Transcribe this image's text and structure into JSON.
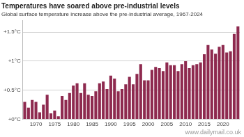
{
  "chart_data": {
    "type": "bar",
    "title": "Temperatures have soared above pre-industrial levels",
    "subtitle": "Global surface temperature increase above the pre-industrial average, 1967-2024",
    "annotation": "www.dailymail.co.uk",
    "categories": [
      null,
      null,
      null,
      "1970",
      null,
      null,
      null,
      null,
      "1975",
      null,
      null,
      null,
      null,
      "1980",
      null,
      null,
      null,
      null,
      "1985",
      null,
      null,
      null,
      null,
      "1990",
      null,
      null,
      null,
      null,
      "1995",
      null,
      null,
      null,
      null,
      "2000",
      null,
      null,
      null,
      null,
      "2005",
      null,
      null,
      null,
      null,
      "2010",
      null,
      null,
      null,
      null,
      "2015",
      null,
      null,
      null,
      null,
      "2020",
      null,
      null,
      null,
      null
    ],
    "values": [
      0.3,
      0.2,
      0.33,
      0.3,
      0.12,
      0.25,
      0.42,
      0.1,
      0.15,
      0.05,
      0.4,
      0.33,
      0.45,
      0.58,
      0.62,
      0.45,
      0.62,
      0.42,
      0.4,
      0.48,
      0.62,
      0.65,
      0.52,
      0.75,
      0.7,
      0.48,
      0.52,
      0.6,
      0.73,
      0.6,
      0.78,
      0.95,
      0.67,
      0.67,
      0.85,
      0.9,
      0.88,
      0.83,
      0.98,
      0.93,
      0.93,
      0.83,
      0.95,
      1.0,
      0.88,
      0.93,
      0.95,
      0.98,
      1.12,
      1.28,
      1.2,
      1.13,
      1.25,
      1.28,
      1.15,
      1.17,
      1.47,
      1.6
    ],
    "color": "#8e2a4f",
    "ylim": [
      0,
      1.7
    ],
    "yticks": [
      {
        "value": 0,
        "label": "+0°C"
      },
      {
        "value": 0.5,
        "label": "+0.5°C"
      },
      {
        "value": 1,
        "label": "+1°C"
      },
      {
        "value": 1.5,
        "label": "+1.5°C"
      }
    ],
    "grid": true
  }
}
